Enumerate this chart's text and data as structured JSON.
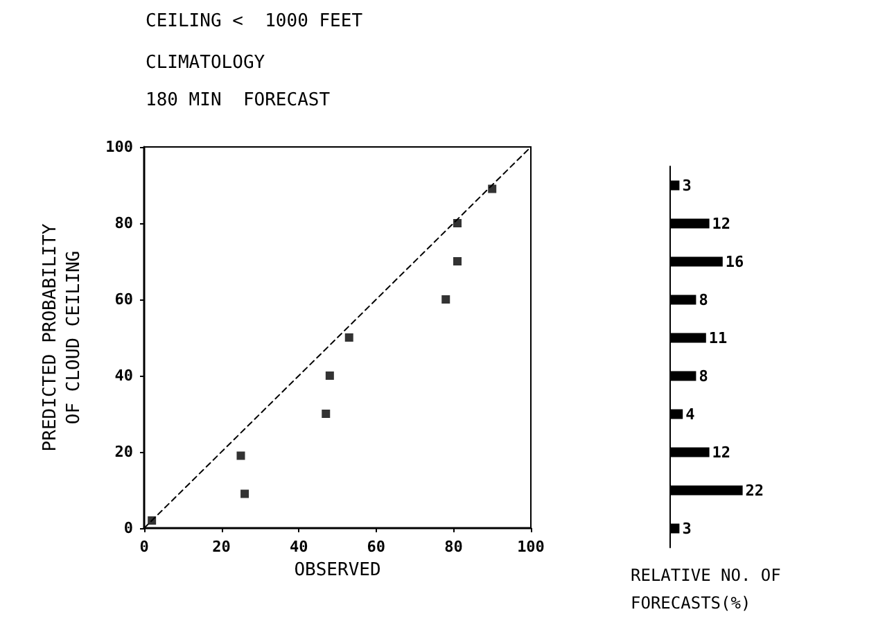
{
  "chart_data": [
    {
      "type": "scatter",
      "title": "CEILING <  1000 FEET",
      "subtitle": "CLIMATOLOGY\n180 MIN  FORECAST",
      "xlabel": "OBSERVED",
      "ylabel": "PREDICTED PROBABILITY\nOF CLOUD CEILING",
      "xlim": [
        0,
        100
      ],
      "xticks": [
        0,
        20,
        40,
        60,
        80,
        100
      ],
      "ylim": [
        0,
        100
      ],
      "yticks": [
        0,
        20,
        40,
        60,
        80,
        100
      ],
      "grid": false,
      "series": [
        {
          "type": "scatter",
          "color": "#000000",
          "marker": "square",
          "x": [
            2,
            26,
            25,
            47,
            48,
            53,
            78,
            81,
            81,
            90
          ],
          "values": [
            2,
            9,
            19,
            30,
            40,
            50,
            60,
            70,
            80,
            89
          ]
        },
        {
          "type": "line",
          "color": "#000000",
          "marker": "none",
          "line_style": "dashed",
          "x": [
            0,
            100
          ],
          "values": [
            0,
            100
          ]
        }
      ]
    },
    {
      "type": "bar",
      "orientation": "horizontal",
      "xlabel": "RELATIVE NO. OF\nFORECASTS(%)",
      "categories": [
        null,
        null,
        null,
        null,
        null,
        null,
        null,
        null,
        null,
        null
      ],
      "data_labels": true,
      "grid": false,
      "series": [
        {
          "color": "#000000",
          "values": [
            3,
            12,
            16,
            8,
            11,
            8,
            4,
            12,
            22,
            3
          ]
        }
      ]
    }
  ]
}
